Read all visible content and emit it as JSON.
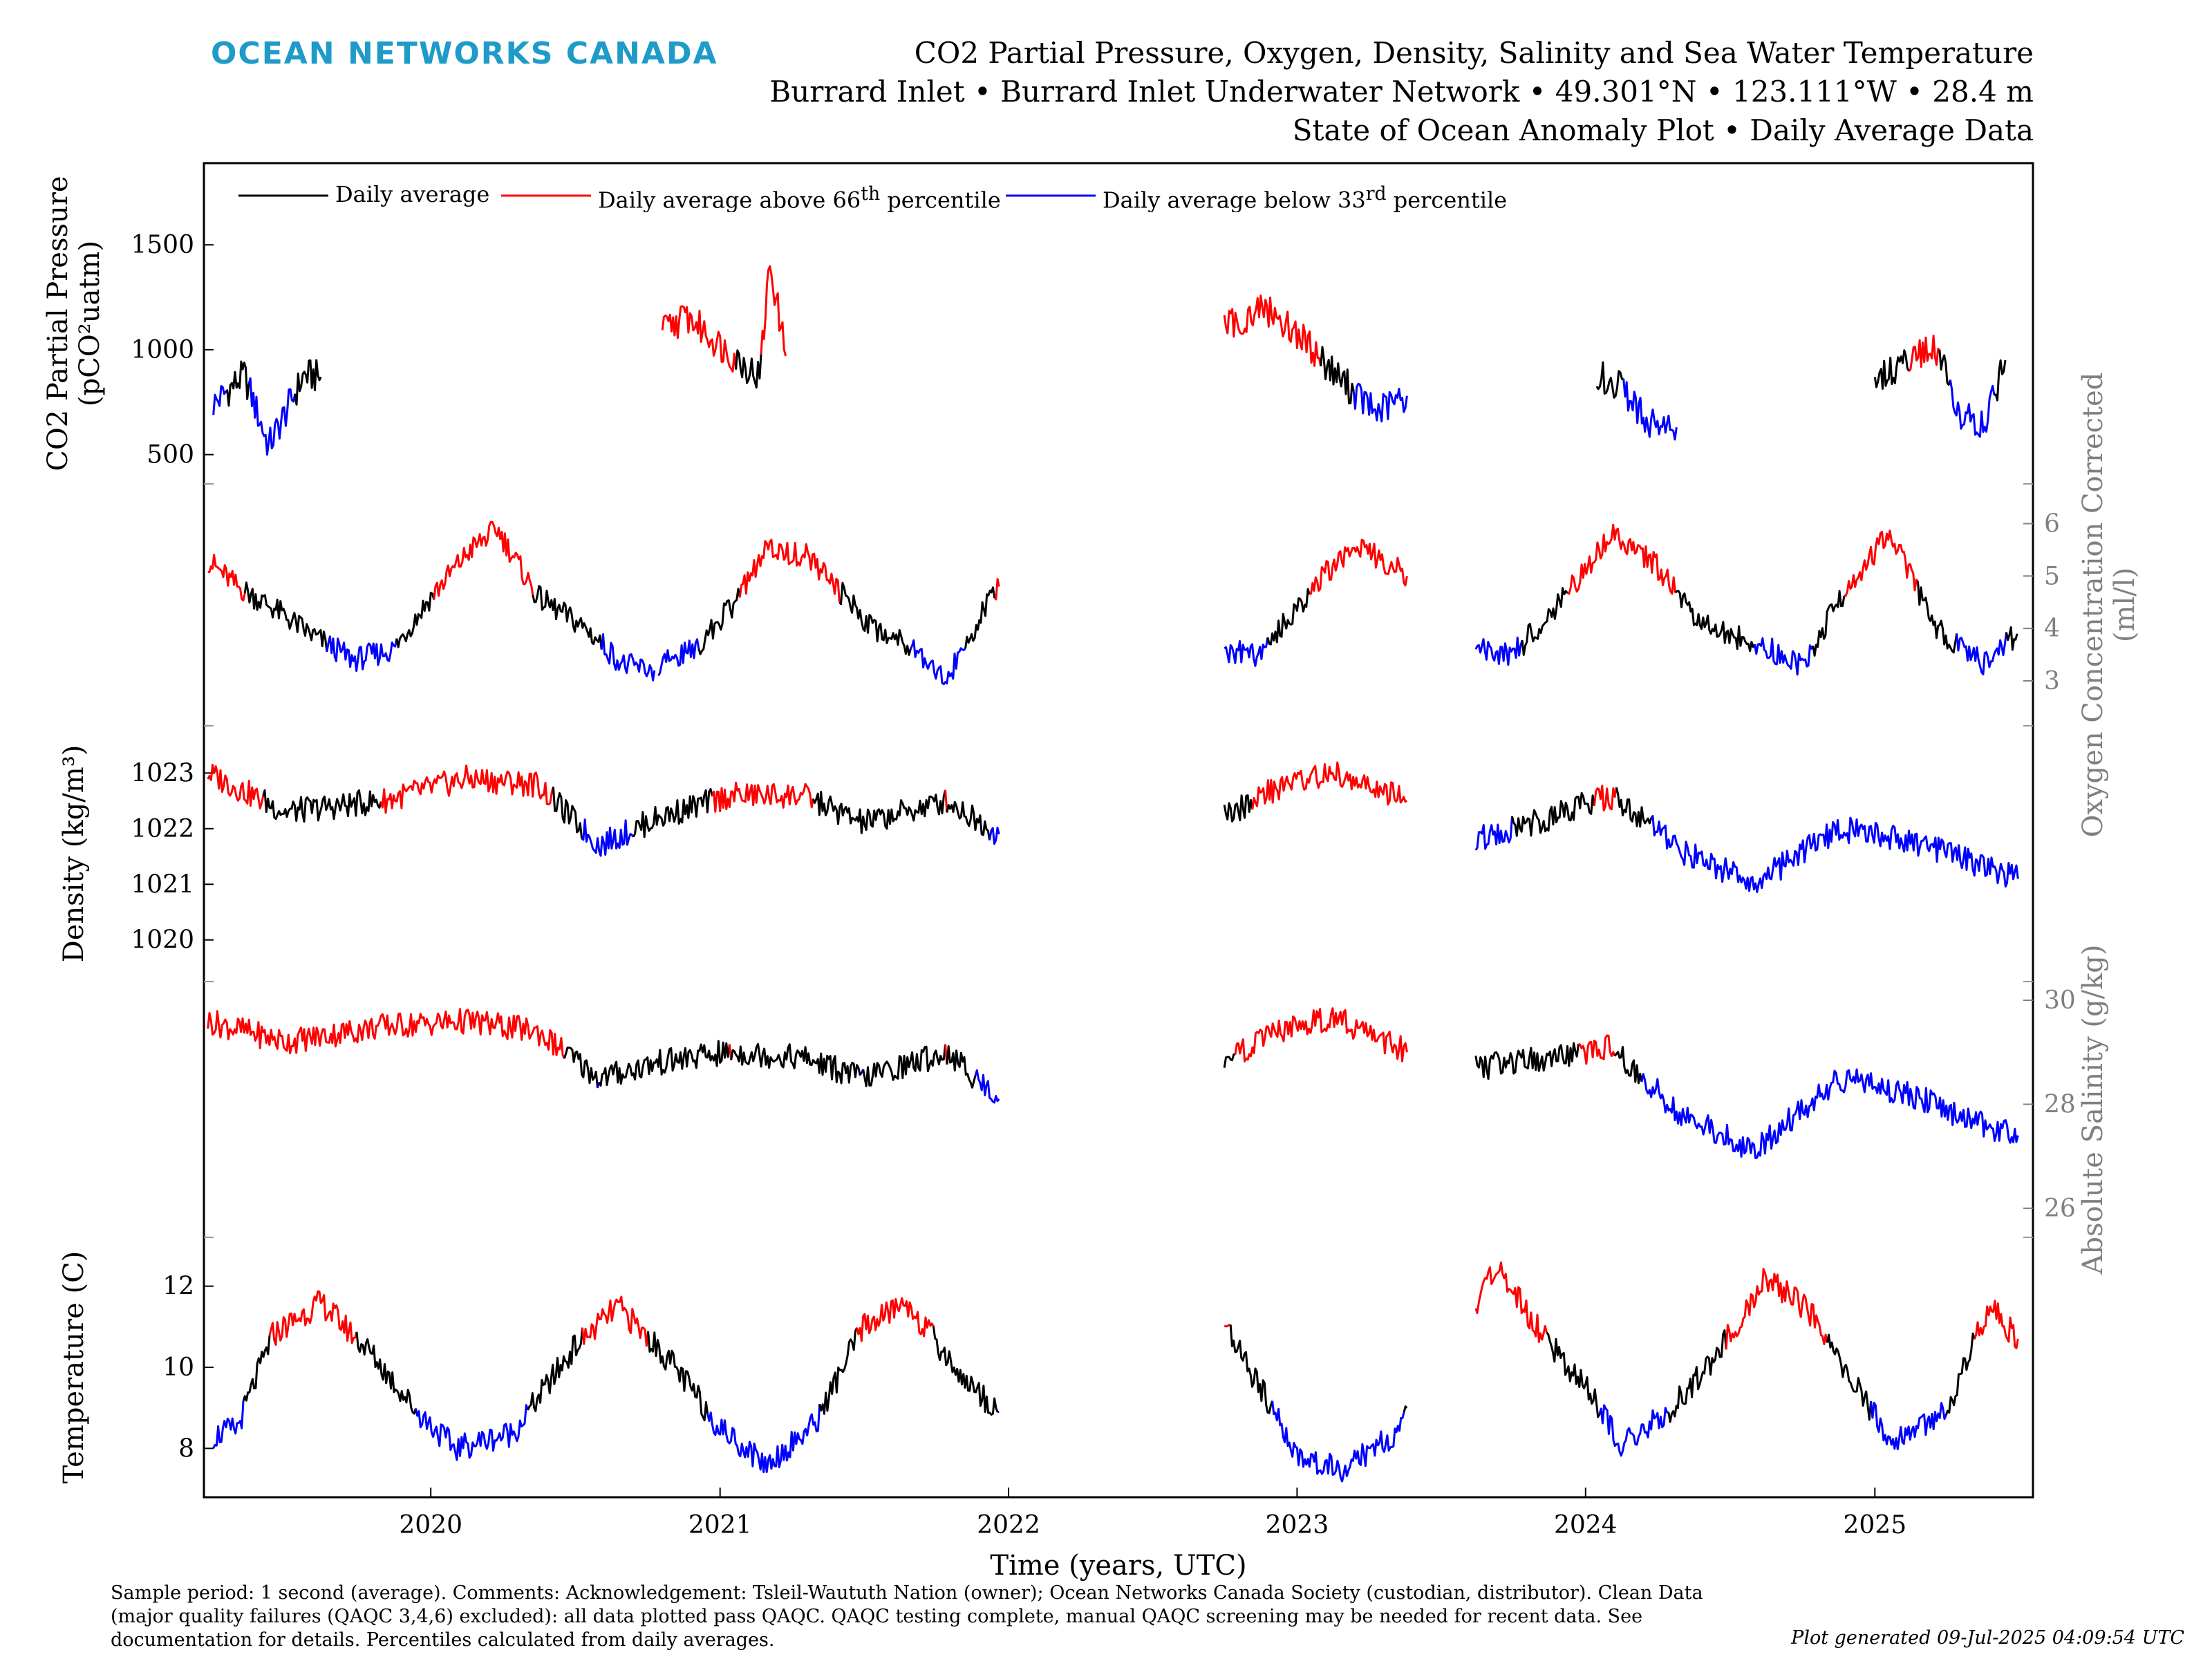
{
  "header": {
    "brand": "OCEAN NETWORKS CANADA",
    "title": "CO2 Partial Pressure, Oxygen, Density, Salinity and Sea Water Temperature",
    "subtitle1": "Burrard Inlet • Burrard Inlet Underwater Network • 49.301°N • 123.111°W • 28.4 m",
    "subtitle2": "State of Ocean Anomaly Plot • Daily Average Data"
  },
  "footer": {
    "footnote": "Sample period: 1 second (average). Comments: Acknowledgement: Tsleil-Waututh Nation (owner); Ocean Networks Canada Society (custodian, distributor). Clean Data (major quality failures (QAQC 3,4,6) excluded): all data plotted pass QAQC. QAQC testing complete, manual QAQC screening may be needed for recent data. See documentation for details. Percentiles calculated from daily averages.",
    "generated": "Plot generated 09-Jul-2025 04:09:54 UTC"
  },
  "colors": {
    "normal": "#000000",
    "above": "#ff0000",
    "below": "#0000ff",
    "brand": "#1e9bc8",
    "grey_axis": "#808080"
  },
  "chart_data": {
    "type": "line",
    "xlabel": "Time (years, UTC)",
    "x_ticks": [
      "2020",
      "2021",
      "2022",
      "2023",
      "2024",
      "2025"
    ],
    "x_range": [
      "2019-03-20",
      "2025-07-20"
    ],
    "legend": {
      "position": "top-left",
      "entries": [
        {
          "label_html": "Daily average",
          "color": "#000000"
        },
        {
          "label_html": "Daily average above 66<sup>th</sup> percentile",
          "color": "#ff0000"
        },
        {
          "label_html": "Daily average below 33<sup>rd</sup> percentile",
          "color": "#0000ff"
        }
      ]
    },
    "panels": [
      {
        "name": "co2",
        "ylabel_lines": [
          "CO2 Partial Pressure",
          "(pCO²uatm)"
        ],
        "axis_side": "left",
        "ylim": [
          400,
          1850
        ],
        "yticks": [
          500,
          1000,
          1500
        ],
        "segments": [
          {
            "x": [
              "2019-04-01",
              "2019-05-10",
              "2019-06-10",
              "2019-07-25",
              "2019-08-15"
            ],
            "y": [
              740,
              880,
              540,
              880,
              870
            ]
          },
          {
            "x": [
              "2020-10-20",
              "2020-11-20",
              "2021-01-05",
              "2021-02-20",
              "2021-03-05",
              "2021-03-25"
            ],
            "y": [
              1090,
              1160,
              1010,
              870,
              1420,
              970
            ]
          },
          {
            "x": [
              "2022-10-01",
              "2022-11-20",
              "2023-01-01",
              "2023-02-20",
              "2023-04-10",
              "2023-05-20"
            ],
            "y": [
              1100,
              1200,
              1080,
              880,
              700,
              780
            ]
          },
          {
            "x": [
              "2024-01-15",
              "2024-02-20",
              "2024-03-20",
              "2024-04-25"
            ],
            "y": [
              890,
              800,
              660,
              630
            ]
          },
          {
            "x": [
              "2025-01-01",
              "2025-02-15",
              "2025-03-20",
              "2025-04-20",
              "2025-05-20",
              "2025-06-15"
            ],
            "y": [
              850,
              960,
              1000,
              680,
              660,
              950
            ]
          }
        ]
      },
      {
        "name": "oxygen",
        "ylabel_lines": [
          "Oxygen Concentration Corrected",
          "(ml/l)"
        ],
        "axis_side": "right",
        "ylim": [
          2.3,
          6.6
        ],
        "yticks": [
          3,
          4,
          5,
          6
        ],
        "segments": [
          {
            "x": [
              "2019-03-25",
              "2019-05-01",
              "2019-06-15",
              "2019-08-01",
              "2019-09-25",
              "2019-11-15",
              "2020-01-01",
              "2020-02-20",
              "2020-03-25",
              "2020-05-15",
              "2020-07-15",
              "2020-09-01",
              "2020-10-10"
            ],
            "y": [
              5.3,
              4.8,
              4.4,
              3.9,
              3.4,
              3.6,
              4.6,
              5.5,
              5.9,
              4.6,
              4.0,
              3.3,
              3.2
            ]
          },
          {
            "x": [
              "2020-10-15",
              "2020-12-01",
              "2021-01-20",
              "2021-03-01",
              "2021-04-20",
              "2021-06-01",
              "2021-07-15",
              "2021-09-01",
              "2021-10-15",
              "2021-11-25",
              "2021-12-20"
            ],
            "y": [
              3.3,
              3.6,
              4.5,
              5.5,
              5.4,
              4.7,
              4.0,
              3.7,
              3.0,
              4.2,
              4.8
            ]
          },
          {
            "x": [
              "2022-10-01",
              "2022-11-15",
              "2023-01-01",
              "2023-02-15",
              "2023-03-20",
              "2023-05-20"
            ],
            "y": [
              3.6,
              3.5,
              4.4,
              5.2,
              5.6,
              5.0
            ]
          },
          {
            "x": [
              "2023-08-15",
              "2023-10-01",
              "2023-12-01",
              "2024-02-01",
              "2024-03-25",
              "2024-05-15",
              "2024-07-01",
              "2024-08-20",
              "2024-10-01",
              "2024-12-01",
              "2025-01-20",
              "2025-03-20",
              "2025-05-20",
              "2025-06-30"
            ],
            "y": [
              3.6,
              3.5,
              4.5,
              5.8,
              5.3,
              4.3,
              3.9,
              3.6,
              3.3,
              4.9,
              5.8,
              4.0,
              3.3,
              3.9
            ]
          }
        ]
      },
      {
        "name": "density",
        "ylabel_lines": [
          "Density (kg/m³)"
        ],
        "axis_side": "left",
        "ylim": [
          1019.4,
          1023.7
        ],
        "yticks": [
          1020,
          1021,
          1022,
          1023
        ],
        "segments": [
          {
            "x": [
              "2019-03-25",
              "2019-07-01",
              "2019-11-01",
              "2020-02-15",
              "2020-05-15",
              "2020-08-01",
              "2020-10-15",
              "2021-01-15",
              "2021-04-15",
              "2021-07-01",
              "2021-10-15",
              "2021-12-20"
            ],
            "y": [
              1023.0,
              1022.3,
              1022.5,
              1022.9,
              1022.8,
              1021.7,
              1022.2,
              1022.6,
              1022.6,
              1022.1,
              1022.5,
              1021.9
            ]
          },
          {
            "x": [
              "2022-10-01",
              "2022-12-15",
              "2023-02-15",
              "2023-05-20"
            ],
            "y": [
              1022.2,
              1022.8,
              1023.0,
              1022.5
            ]
          },
          {
            "x": [
              "2023-08-15",
              "2023-11-15",
              "2024-02-01",
              "2024-05-01",
              "2024-08-01",
              "2024-11-15",
              "2025-02-15",
              "2025-05-01",
              "2025-07-01"
            ],
            "y": [
              1021.8,
              1022.2,
              1022.6,
              1021.6,
              1021.0,
              1022.0,
              1021.8,
              1021.4,
              1021.1
            ]
          }
        ]
      },
      {
        "name": "salinity",
        "ylabel_lines": [
          "Absolute Salinity (g/kg)"
        ],
        "axis_side": "right",
        "ylim": [
          25.6,
          30.2
        ],
        "yticks": [
          26,
          28,
          30
        ],
        "segments": [
          {
            "x": [
              "2019-03-25",
              "2019-07-01",
              "2019-11-01",
              "2020-02-15",
              "2020-05-15",
              "2020-08-01",
              "2020-10-15",
              "2021-01-15",
              "2021-04-15",
              "2021-07-01",
              "2021-10-15",
              "2021-12-20"
            ],
            "y": [
              29.6,
              29.2,
              29.5,
              29.6,
              29.4,
              28.5,
              28.8,
              29.0,
              28.9,
              28.5,
              29.0,
              28.1
            ]
          },
          {
            "x": [
              "2022-10-01",
              "2022-12-15",
              "2023-02-15",
              "2023-05-20"
            ],
            "y": [
              28.9,
              29.4,
              29.7,
              29.0
            ]
          },
          {
            "x": [
              "2023-08-15",
              "2023-11-15",
              "2024-02-01",
              "2024-05-01",
              "2024-08-01",
              "2024-11-15",
              "2025-02-15",
              "2025-05-01",
              "2025-07-01"
            ],
            "y": [
              28.7,
              28.9,
              29.1,
              27.8,
              27.1,
              28.5,
              28.2,
              27.7,
              27.4
            ]
          }
        ]
      },
      {
        "name": "temperature",
        "ylabel_lines": [
          "Temperature (C)"
        ],
        "axis_side": "left",
        "ylim": [
          7.0,
          13.0
        ],
        "yticks": [
          8,
          10,
          12
        ],
        "segments": [
          {
            "x": [
              "2019-04-01",
              "2019-05-01",
              "2019-06-15",
              "2019-08-15",
              "2019-10-15",
              "2019-12-15",
              "2020-02-01",
              "2020-04-15",
              "2020-07-01",
              "2020-08-25",
              "2020-11-01",
              "2021-01-01",
              "2021-03-01",
              "2021-05-01",
              "2021-07-01",
              "2021-08-25",
              "2021-11-01",
              "2021-12-20"
            ],
            "y": [
              8.3,
              8.5,
              10.8,
              11.6,
              10.4,
              8.9,
              8.0,
              8.4,
              10.5,
              11.5,
              10.1,
              8.5,
              7.6,
              8.6,
              11.0,
              11.6,
              9.8,
              8.9
            ]
          },
          {
            "x": [
              "2022-10-01",
              "2022-11-15",
              "2023-01-01",
              "2023-03-01",
              "2023-05-01",
              "2023-05-20"
            ],
            "y": [
              11.0,
              9.5,
              7.8,
              7.5,
              8.3,
              9.0
            ]
          },
          {
            "x": [
              "2023-08-15",
              "2023-09-10",
              "2023-11-01",
              "2024-01-01",
              "2024-02-15",
              "2024-04-15",
              "2024-06-15",
              "2024-08-15",
              "2024-10-15",
              "2024-12-15",
              "2025-01-20",
              "2025-04-01",
              "2025-05-25",
              "2025-07-01"
            ],
            "y": [
              11.5,
              12.5,
              11.0,
              9.5,
              8.1,
              8.9,
              10.3,
              12.2,
              11.3,
              9.3,
              8.2,
              8.9,
              11.5,
              10.7
            ]
          }
        ]
      }
    ]
  }
}
